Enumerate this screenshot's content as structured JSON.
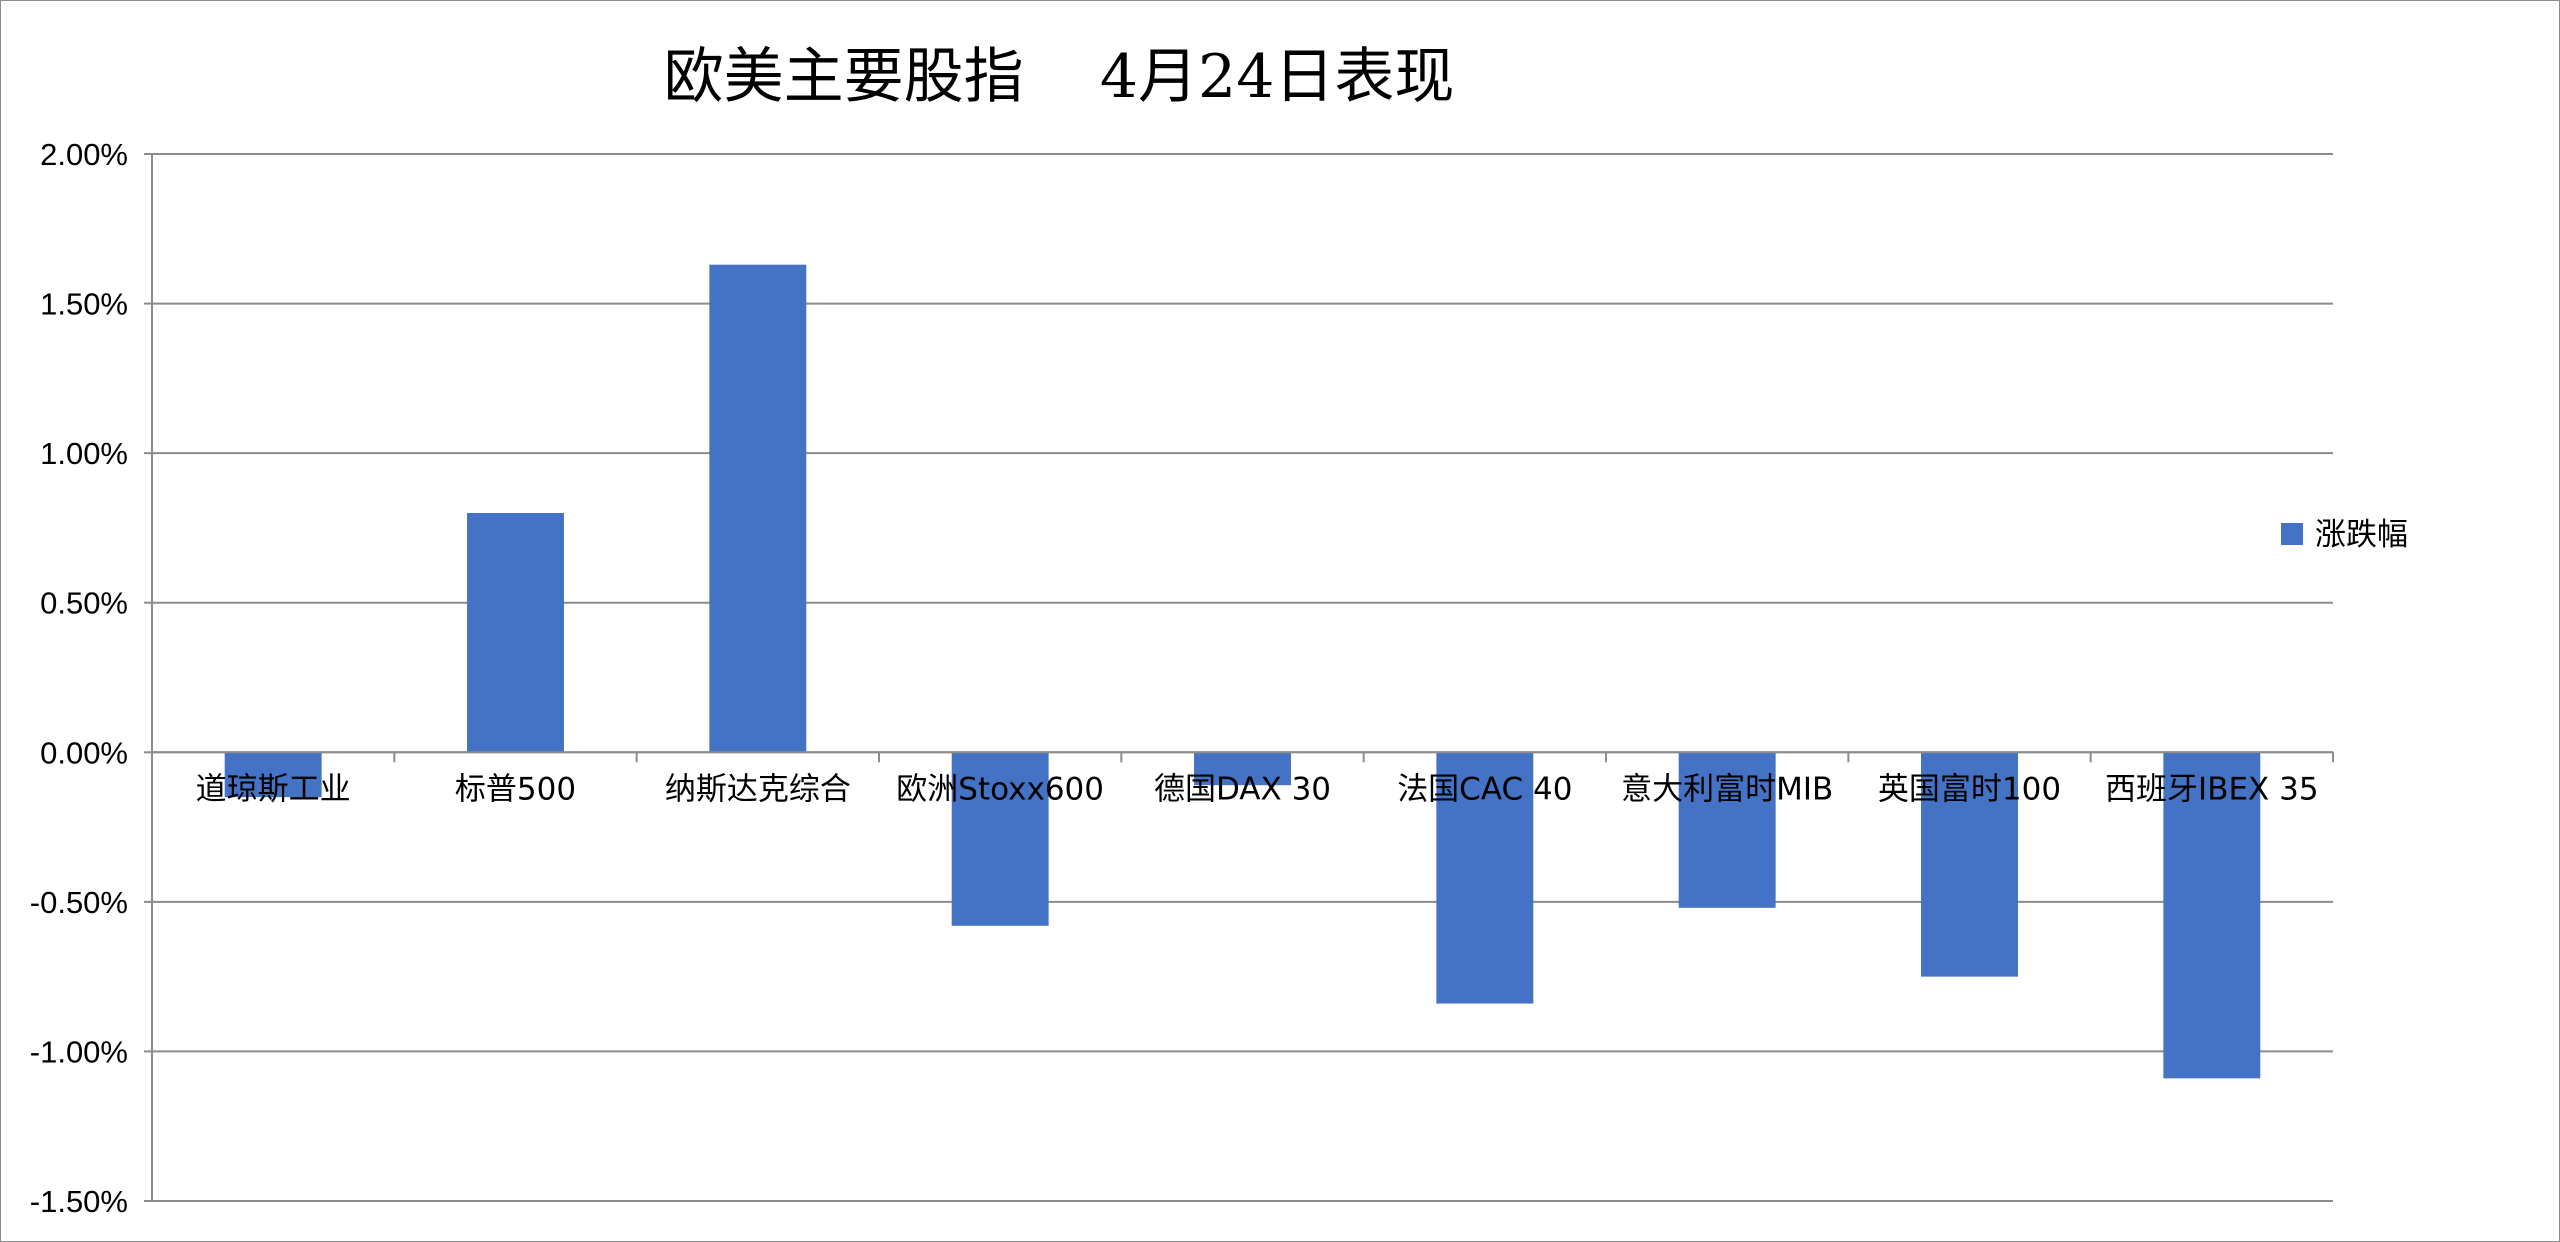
{
  "chart_data": {
    "type": "bar",
    "title": "欧美主要股指    4月24日表现",
    "categories": [
      "道琼斯工业",
      "标普500",
      "纳斯达克综合",
      "欧洲Stoxx600",
      "德国DAX 30",
      "法国CAC 40",
      "意大利富时MIB",
      "英国富时100",
      "西班牙IBEX 35"
    ],
    "series": [
      {
        "name": "涨跌幅",
        "values": [
          -0.0015,
          0.008,
          0.0163,
          -0.0058,
          -0.0011,
          -0.0084,
          -0.0052,
          -0.0075,
          -0.0109
        ],
        "color": "#4472C4"
      }
    ],
    "yticks": [
      "2.00%",
      "1.50%",
      "1.00%",
      "0.50%",
      "0.00%",
      "-0.50%",
      "-1.00%",
      "-1.50%"
    ],
    "ylim": [
      -0.015,
      0.02
    ],
    "grid": true,
    "legend_position": "right"
  }
}
